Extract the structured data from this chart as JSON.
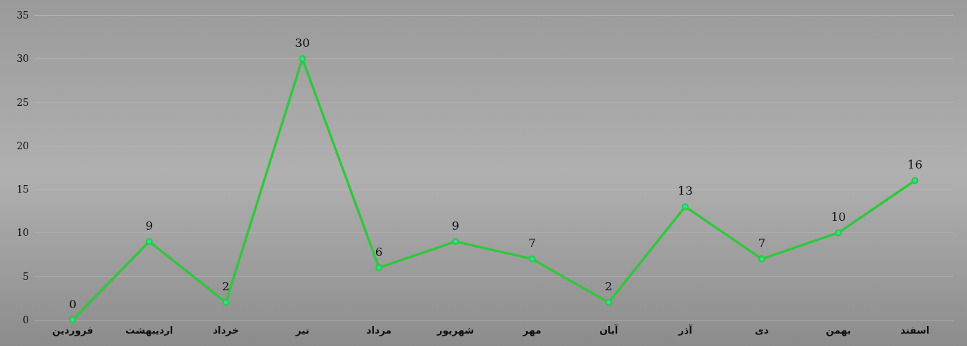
{
  "chart_data": {
    "type": "line",
    "categories": [
      "فروردین",
      "اردیبهشت",
      "خرداد",
      "تیر",
      "مرداد",
      "شهریور",
      "مهر",
      "آبان",
      "آذر",
      "دی",
      "بهمن",
      "اسفند"
    ],
    "values": [
      0,
      9,
      2,
      30,
      6,
      9,
      7,
      2,
      13,
      7,
      10,
      16
    ],
    "color": "#2ec83a",
    "ylim": [
      0,
      35
    ],
    "yticks": [
      0,
      5,
      10,
      15,
      20,
      25,
      30,
      35
    ],
    "grid": "y",
    "marker": "circle",
    "line_style": "solid",
    "data_labels": true
  }
}
